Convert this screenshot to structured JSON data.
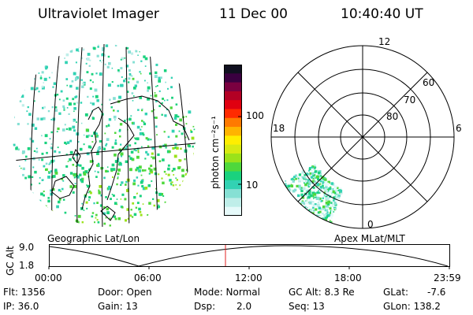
{
  "header": {
    "instrument": "Ultraviolet Imager",
    "date": "11 Dec 00",
    "time": "10:40:40 UT"
  },
  "colorbar": {
    "unit_label": "photon cm⁻²s⁻¹",
    "ticks": [
      "100",
      "10"
    ],
    "colors": [
      "#e6fafa",
      "#bfeee9",
      "#86e0d4",
      "#32d2b3",
      "#1ad27e",
      "#4fd83c",
      "#9be21a",
      "#d7ea12",
      "#ffee00",
      "#ffb400",
      "#ff7a00",
      "#ff2a00",
      "#e00010",
      "#b30024",
      "#7a0040",
      "#3a0040",
      "#101020"
    ]
  },
  "left_panel": {
    "caption": "Geographic Lat/Lon"
  },
  "right_panel": {
    "caption": "Apex MLat/MLT",
    "mlt_labels": [
      "12",
      "18",
      "6",
      "0"
    ],
    "lat_labels": [
      "60",
      "70",
      "80"
    ]
  },
  "altitude_plot": {
    "ylabel": "GC Alt",
    "yticks": [
      "9.0",
      "1.8"
    ],
    "xticks": [
      "00:00",
      "06:00",
      "12:00",
      "18:00",
      "23:59"
    ]
  },
  "status": {
    "flt": "Flt: 1356",
    "ip": "IP: 36.0",
    "door": "Door: Open",
    "gain": "Gain: 13",
    "mode": "Mode: Normal",
    "dsp_label": "Dsp:",
    "dsp_value": "2.0",
    "gcalt": "GC Alt: 8.3 Re",
    "seq": "Seq: 13",
    "glat_label": "GLat:",
    "glat_value": "-7.6",
    "glon": "GLon: 138.2"
  },
  "style": {
    "marker_color": "#e02020"
  }
}
